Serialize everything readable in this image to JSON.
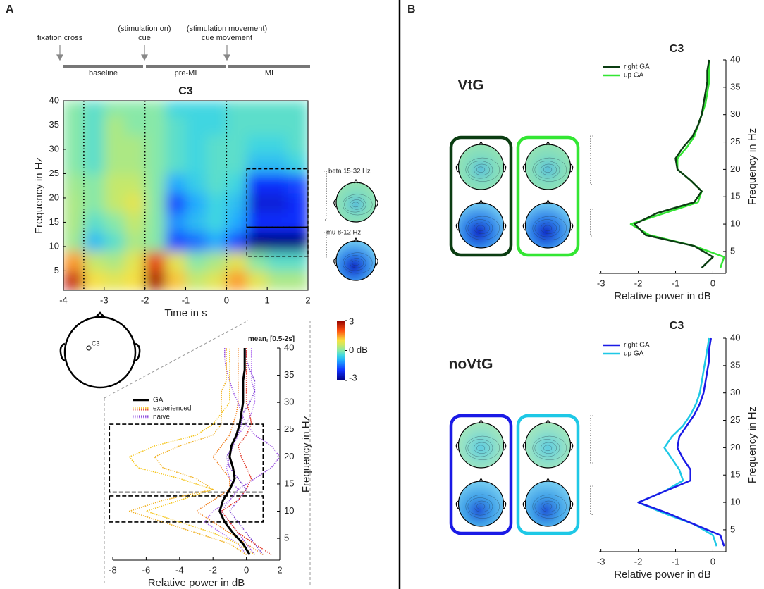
{
  "panel_labels": [
    "A",
    "B"
  ],
  "timeline": {
    "events": [
      [
        "fixation cross"
      ],
      [
        "(stimulation on)",
        "cue"
      ],
      [
        "(stimulation movement)",
        "cue movement"
      ]
    ],
    "phases": [
      "baseline",
      "pre-MI",
      "MI"
    ]
  },
  "head": {
    "electrode": "C3"
  },
  "chart_data": [
    {
      "type": "heatmap",
      "title": "C3",
      "x_label": "Time in s",
      "y_label": "Frequency in Hz",
      "x_bins": [
        -4,
        -3.5,
        -3,
        -2.5,
        -2,
        -1.5,
        -1,
        -0.5,
        0,
        0.5,
        1,
        1.5,
        2
      ],
      "y_bins": [
        1,
        5,
        9,
        13,
        17,
        21,
        25,
        29,
        33,
        37,
        40
      ],
      "values": [
        [
          2.5,
          1.0,
          0.8,
          1.0,
          2.8,
          1.2,
          0.5,
          0.8,
          1.5,
          0.8,
          0.3,
          0.3
        ],
        [
          1.5,
          0.5,
          0.3,
          0.8,
          2.2,
          0.8,
          0.0,
          0.3,
          0.8,
          0.0,
          -0.3,
          -0.3
        ],
        [
          0.2,
          -0.8,
          -0.3,
          0.3,
          0.0,
          -1.8,
          -1.5,
          -1.0,
          -1.8,
          -3.0,
          -3.0,
          -3.0
        ],
        [
          0.3,
          -0.3,
          0.0,
          0.5,
          0.0,
          -1.2,
          -0.8,
          -0.5,
          -1.0,
          -2.0,
          -2.0,
          -2.0
        ],
        [
          0.3,
          0.0,
          0.5,
          0.8,
          0.0,
          -1.8,
          -1.0,
          -0.5,
          -0.8,
          -2.3,
          -2.3,
          -2.0
        ],
        [
          0.2,
          0.0,
          0.5,
          0.5,
          0.0,
          -1.0,
          -0.6,
          -0.3,
          -0.5,
          -2.0,
          -2.0,
          -1.8
        ],
        [
          0.0,
          -0.3,
          0.3,
          0.3,
          0.0,
          -0.3,
          -0.5,
          -0.3,
          -0.3,
          -0.8,
          -0.8,
          -0.5
        ],
        [
          0.0,
          -0.3,
          0.3,
          0.3,
          0.0,
          -0.3,
          -0.5,
          -0.3,
          -0.3,
          -0.5,
          -0.5,
          -0.3
        ],
        [
          0.0,
          -0.3,
          0.3,
          0.0,
          0.0,
          -0.3,
          -0.5,
          -0.5,
          -0.3,
          -0.3,
          -0.3,
          -0.3
        ],
        [
          0.0,
          -0.3,
          0.0,
          0.0,
          0.0,
          -0.5,
          -0.5,
          -0.5,
          -0.3,
          -0.3,
          -0.3,
          -0.3
        ]
      ],
      "xlim": [
        -4,
        2
      ],
      "ylim": [
        1,
        40
      ],
      "xticks": [
        -4,
        -3,
        -2,
        -1,
        0,
        1,
        2
      ],
      "yticks": [
        5,
        10,
        15,
        20,
        25,
        30,
        35,
        40
      ],
      "markers": [
        -3.5,
        -2,
        0
      ],
      "regions": [
        {
          "label": "beta 15-32 Hz",
          "x": [
            0.5,
            2
          ],
          "y": [
            14,
            26
          ]
        },
        {
          "label": "mu 8-12 Hz",
          "x": [
            0.5,
            2
          ],
          "y": [
            8,
            14
          ]
        }
      ],
      "colorbar": {
        "clim": [
          -3,
          3
        ],
        "ticks": [
          3,
          {
            "value": 0,
            "label": "0 dB"
          },
          -3
        ]
      }
    },
    {
      "type": "line",
      "title": "mean",
      "title_sub": "t",
      "title_rest": " [0.5-2s]",
      "x_label": "Relative power in dB",
      "y_label": "Frequency in Hz",
      "y": [
        2,
        4,
        6,
        8,
        10,
        12,
        14,
        16,
        18,
        20,
        22,
        24,
        26,
        28,
        30,
        32,
        34,
        36,
        38,
        40
      ],
      "series": [
        {
          "name": "GA",
          "color": "#000000",
          "values": [
            0.2,
            -0.2,
            -0.8,
            -1.3,
            -1.6,
            -1.4,
            -1.0,
            -0.7,
            -0.8,
            -1.0,
            -0.9,
            -0.6,
            -0.4,
            -0.3,
            -0.2,
            -0.2,
            -0.2,
            -0.1,
            -0.1,
            -0.1
          ]
        },
        {
          "name": "experienced",
          "dash": "dotted",
          "colors": [
            "#f5c518",
            "#f0b020",
            "#f08020",
            "#e03020"
          ],
          "lines": [
            [
              0.5,
              -0.5,
              -2,
              -4,
              -6,
              -4,
              -2,
              -4,
              -6.5,
              -7,
              -5.5,
              -3,
              -2,
              -1.5,
              -1,
              -1,
              -1,
              -1,
              -1,
              -1
            ],
            [
              0,
              -1,
              -3,
              -5,
              -7,
              -5,
              -2,
              -3,
              -5,
              -5.5,
              -4,
              -2,
              -1.5,
              -1.5,
              -1.5,
              -1.5,
              -1.2,
              -1.2,
              -1.2,
              -1.2
            ],
            [
              1,
              0,
              -1,
              -2,
              -3,
              -2,
              -1,
              -1,
              -1.5,
              -2,
              -1.5,
              -1,
              -0.8,
              -0.6,
              -0.5,
              -0.5,
              -0.5,
              -0.5,
              -0.5,
              -0.5
            ],
            [
              1.5,
              0.5,
              -0.5,
              -1,
              -1.5,
              -0.5,
              0,
              0.3,
              0,
              -0.3,
              -0.5,
              0,
              0.3,
              0.2,
              0,
              0,
              0,
              0,
              0,
              0
            ]
          ]
        },
        {
          "name": "naive",
          "dash": "dotted",
          "colors": [
            "#9a50e0",
            "#7a40d0",
            "#b070f0"
          ],
          "lines": [
            [
              0.5,
              0,
              -0.5,
              -1,
              -1.5,
              -1,
              -0.5,
              0.5,
              1.5,
              2,
              1.5,
              0.5,
              0,
              -0.3,
              -0.5,
              -0.8,
              -1,
              -1.2,
              -1.3,
              -1.3
            ],
            [
              1,
              0.5,
              0,
              -0.5,
              -1,
              -0.5,
              0,
              -0.5,
              -1,
              -1.2,
              -0.8,
              -0.5,
              -0.3,
              -0.2,
              0.2,
              0.5,
              0.5,
              0.2,
              0,
              0
            ],
            [
              0,
              -0.5,
              -1.5,
              -2.5,
              -2,
              -1,
              -0.5,
              -1,
              -1.2,
              -1,
              -0.8,
              -0.5,
              0,
              0.3,
              0.5,
              0.5,
              0.3,
              0.3,
              0.3,
              0.3
            ]
          ]
        }
      ],
      "xlim": [
        -8,
        2
      ],
      "ylim": [
        1,
        40
      ],
      "xticks": [
        -8,
        -6,
        -4,
        -2,
        0,
        2
      ],
      "yticks": [
        5,
        10,
        15,
        20,
        25,
        30,
        35,
        40
      ],
      "regions": [
        {
          "x": [
            -8.2,
            1
          ],
          "y": [
            13.5,
            26
          ]
        },
        {
          "x": [
            -8.2,
            1
          ],
          "y": [
            8,
            12.8
          ]
        }
      ],
      "legend": "upper left"
    },
    {
      "type": "line",
      "title": "C3",
      "group": "VtG",
      "group_color": "#2eb82e",
      "x_label": "Relative power in dB",
      "y_label": "Frequency in Hz",
      "y": [
        2,
        4,
        6,
        8,
        10,
        12,
        14,
        16,
        18,
        20,
        22,
        24,
        26,
        28,
        30,
        32,
        34,
        36,
        38,
        40
      ],
      "series": [
        {
          "name": "right GA",
          "color": "#0b3d12",
          "values": [
            -0.3,
            0,
            -0.5,
            -1.8,
            -2.1,
            -1.5,
            -0.5,
            -0.3,
            -0.6,
            -0.95,
            -1.0,
            -0.8,
            -0.55,
            -0.4,
            -0.3,
            -0.25,
            -0.2,
            -0.15,
            -0.15,
            -0.1
          ]
        },
        {
          "name": "up GA",
          "color": "#33e633",
          "values": [
            0.2,
            0.3,
            -0.5,
            -1.7,
            -2.2,
            -1.3,
            -0.4,
            -0.3,
            -0.6,
            -0.95,
            -0.95,
            -0.7,
            -0.5,
            -0.4,
            -0.3,
            -0.2,
            -0.15,
            -0.1,
            -0.1,
            -0.1
          ]
        }
      ],
      "xlim": [
        -3.05,
        0.35
      ],
      "ylim": [
        1,
        40
      ],
      "xticks": [
        -3,
        -2,
        -1,
        0
      ],
      "yticks": [
        5,
        10,
        15,
        20,
        25,
        30,
        35,
        40
      ],
      "legend": "upper left"
    },
    {
      "type": "line",
      "title": "C3",
      "group": "noVtG",
      "group_color": "#1a5ce6",
      "x_label": "Relative power in dB",
      "y_label": "Frequency in Hz",
      "y": [
        2,
        4,
        6,
        8,
        10,
        12,
        14,
        16,
        18,
        20,
        22,
        24,
        26,
        28,
        30,
        32,
        34,
        36,
        38,
        40
      ],
      "series": [
        {
          "name": "right GA",
          "color": "#1a1ae6",
          "values": [
            0.3,
            0.2,
            -0.5,
            -1.2,
            -2.0,
            -1.3,
            -0.6,
            -0.6,
            -0.8,
            -0.95,
            -0.9,
            -0.7,
            -0.5,
            -0.35,
            -0.25,
            -0.2,
            -0.15,
            -0.1,
            -0.1,
            -0.05
          ]
        },
        {
          "name": "up GA",
          "color": "#1ec8e6",
          "values": [
            0.1,
            0.0,
            -0.5,
            -1.3,
            -2.0,
            -1.3,
            -0.8,
            -0.9,
            -1.1,
            -1.3,
            -1.1,
            -0.8,
            -0.6,
            -0.45,
            -0.35,
            -0.3,
            -0.25,
            -0.2,
            -0.15,
            -0.1
          ]
        }
      ],
      "xlim": [
        -3.05,
        0.35
      ],
      "ylim": [
        1,
        40
      ],
      "xticks": [
        -3,
        -2,
        -1,
        0
      ],
      "yticks": [
        5,
        10,
        15,
        20,
        25,
        30,
        35,
        40
      ],
      "legend": "upper left"
    }
  ]
}
